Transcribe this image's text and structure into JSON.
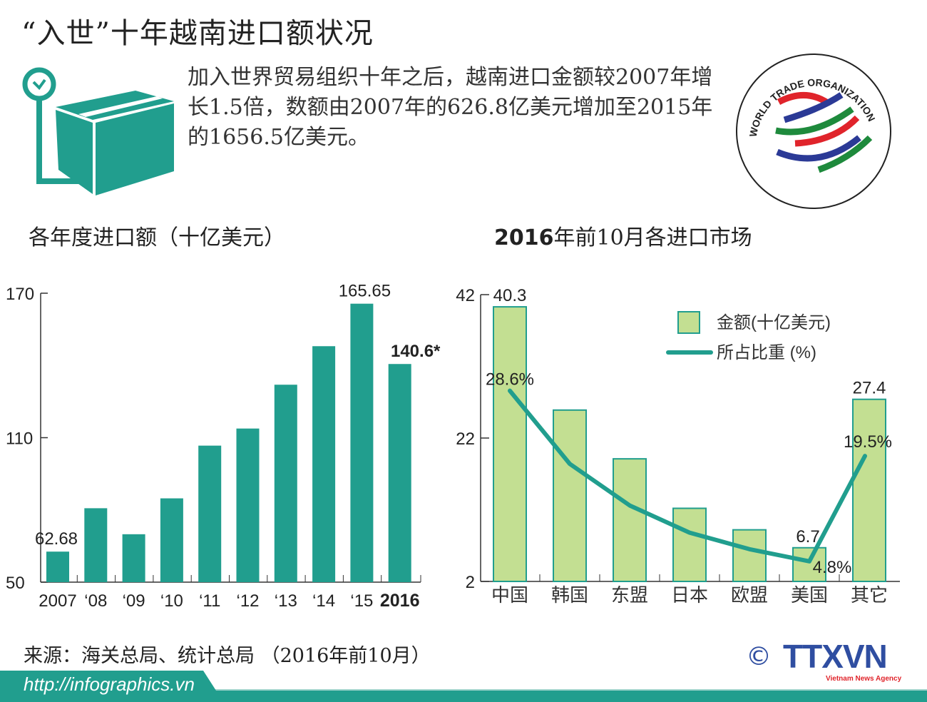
{
  "header": {
    "title": "“入世”十年越南进口额状况",
    "intro": "加入世界贸易组织十年之后，越南进口金额较2007年增长1.5倍，数额由2007年的626.8亿美元增加至2015年的1656.5亿美元。"
  },
  "logo": {
    "wto_text": "WORLD TRADE ORGANIZATION",
    "ttxvn": "TTXVN",
    "ttxvn_sub": "Vietnam News Agency",
    "copyright": "©"
  },
  "colors": {
    "teal": "#219e8e",
    "bar_green": "#c3df92",
    "wto_red": "#e0242b",
    "wto_blue": "#2b3a96",
    "wto_green": "#1e8a3c",
    "ttxvn_blue": "#2f4ea1"
  },
  "chart_data": [
    {
      "type": "bar",
      "title": "各年度进口额（十亿美元）",
      "categories": [
        "2007",
        "‘08",
        "‘09",
        "‘10",
        "‘11",
        "‘12",
        "‘13",
        "‘14",
        "‘15",
        "2016"
      ],
      "values": [
        62.68,
        80.7,
        69.9,
        84.8,
        106.7,
        113.8,
        132.0,
        148.0,
        165.65,
        140.6
      ],
      "data_labels": {
        "0": "62.68",
        "8": "165.65",
        "9": "140.6*"
      },
      "ylim": [
        50,
        170
      ],
      "yticks": [
        "170",
        "110",
        "50"
      ],
      "grid": false
    },
    {
      "type": "bar+line",
      "title_bold": "2016",
      "title_rest": "年前10月各进口市场",
      "categories": [
        "中国",
        "韩国",
        "东盟",
        "日本",
        "欧盟",
        "美国",
        "其它"
      ],
      "series": [
        {
          "name": "金额(十亿美元)",
          "type": "bar",
          "values": [
            40.3,
            25.9,
            19.1,
            12.2,
            9.2,
            6.7,
            27.4
          ],
          "labels": {
            "0": "40.3",
            "5": "6.7",
            "6": "27.4"
          }
        },
        {
          "name": "所占比重 (%)",
          "type": "line",
          "values": [
            28.6,
            18.4,
            12.6,
            8.8,
            6.5,
            4.8,
            19.5
          ],
          "labels": {
            "0": "28.6%",
            "5": "4.8%",
            "6": "19.5%"
          }
        }
      ],
      "ylim": [
        2,
        42
      ],
      "yticks": [
        "42",
        "22",
        "2"
      ],
      "legend": "top-right",
      "grid": false
    }
  ],
  "footer": {
    "source": "来源：海关总局、统计总局 （2016年前10月）",
    "url": "http://infographics.vn"
  }
}
